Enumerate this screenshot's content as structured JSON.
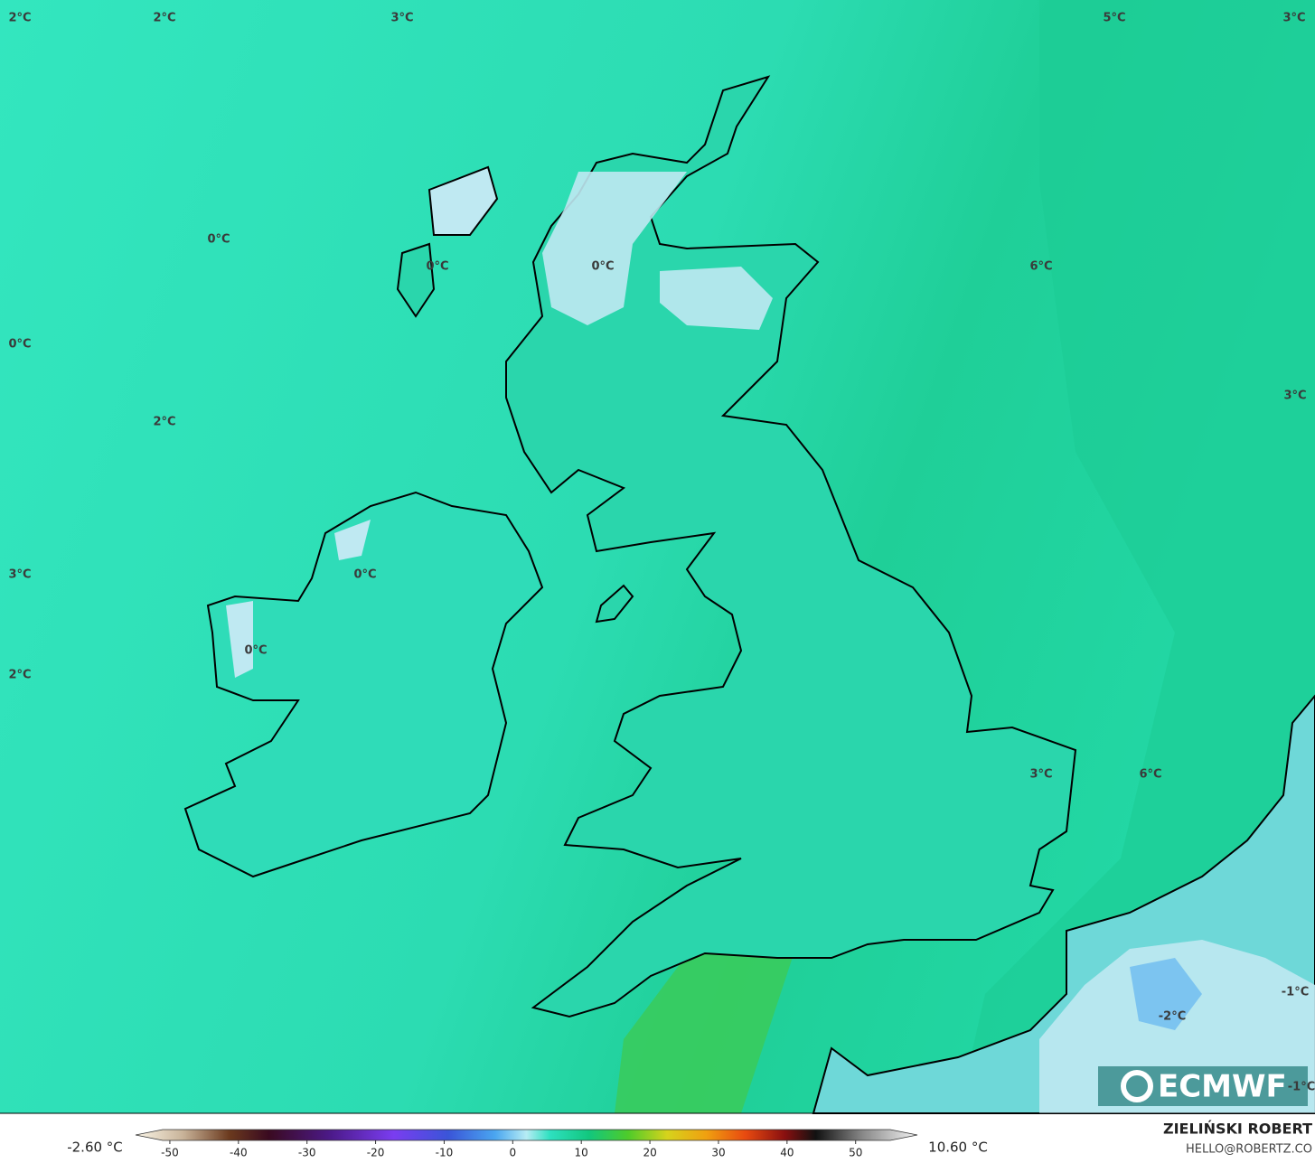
{
  "map": {
    "contour_labels": [
      "2°C",
      "2°C",
      "3°C",
      "5°C",
      "3°C",
      "0°C",
      "0°C",
      "0°C",
      "6°C",
      "0°C",
      "3°C",
      "2°C",
      "3°C",
      "0°C",
      "0°C",
      "2°C",
      "3°C",
      "6°C",
      "-1°C",
      "-2°C",
      "-1°C"
    ],
    "logo": "ECMWF",
    "colorbar": {
      "min_label": "-2.60 °C",
      "max_label": "10.60 °C",
      "lim": [
        -55,
        59
      ],
      "ticks": [
        -50,
        -40,
        -30,
        -20,
        -10,
        0,
        10,
        20,
        30,
        40,
        50
      ]
    },
    "credit": {
      "author": "ZIELIŃSKI ROBERT",
      "contact": "HELLO@ROBERTZ.CO"
    }
  }
}
